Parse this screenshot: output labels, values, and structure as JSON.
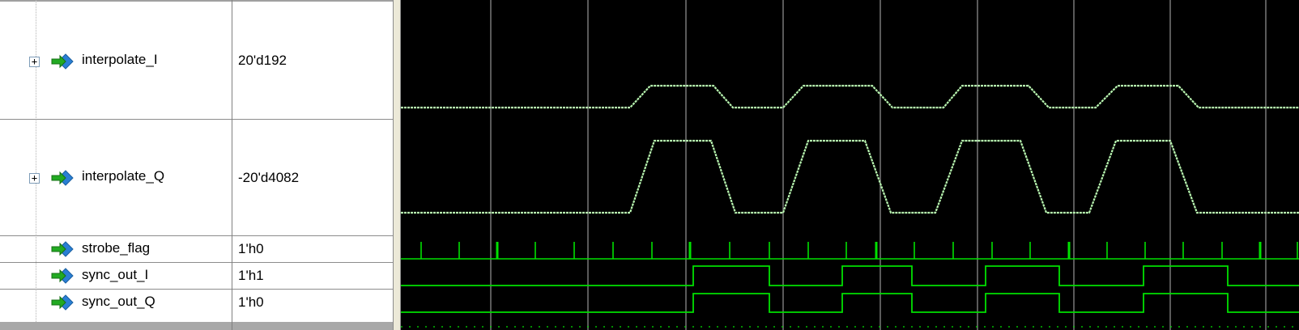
{
  "signals": [
    {
      "name": "interpolate_I",
      "value": "20'd192",
      "expandable": true,
      "expander_glyph": "+",
      "icon": "bus-signal-icon"
    },
    {
      "name": "interpolate_Q",
      "value": "-20'd4082",
      "expandable": true,
      "expander_glyph": "+",
      "icon": "bus-signal-icon"
    },
    {
      "name": "strobe_flag",
      "value": "1'h0",
      "expandable": false,
      "icon": "wire-signal-icon"
    },
    {
      "name": "sync_out_I",
      "value": "1'h1",
      "expandable": false,
      "icon": "wire-signal-icon"
    },
    {
      "name": "sync_out_Q",
      "value": "1'h0",
      "expandable": false,
      "icon": "wire-signal-icon"
    }
  ],
  "colors": {
    "analog_trace": "#b8f5b0",
    "digital_trace": "#00e000",
    "grid": "#b4b4b4",
    "wave_background": "#000000",
    "icon_blue": "#2a7fd4",
    "icon_green": "#22aa22"
  }
}
